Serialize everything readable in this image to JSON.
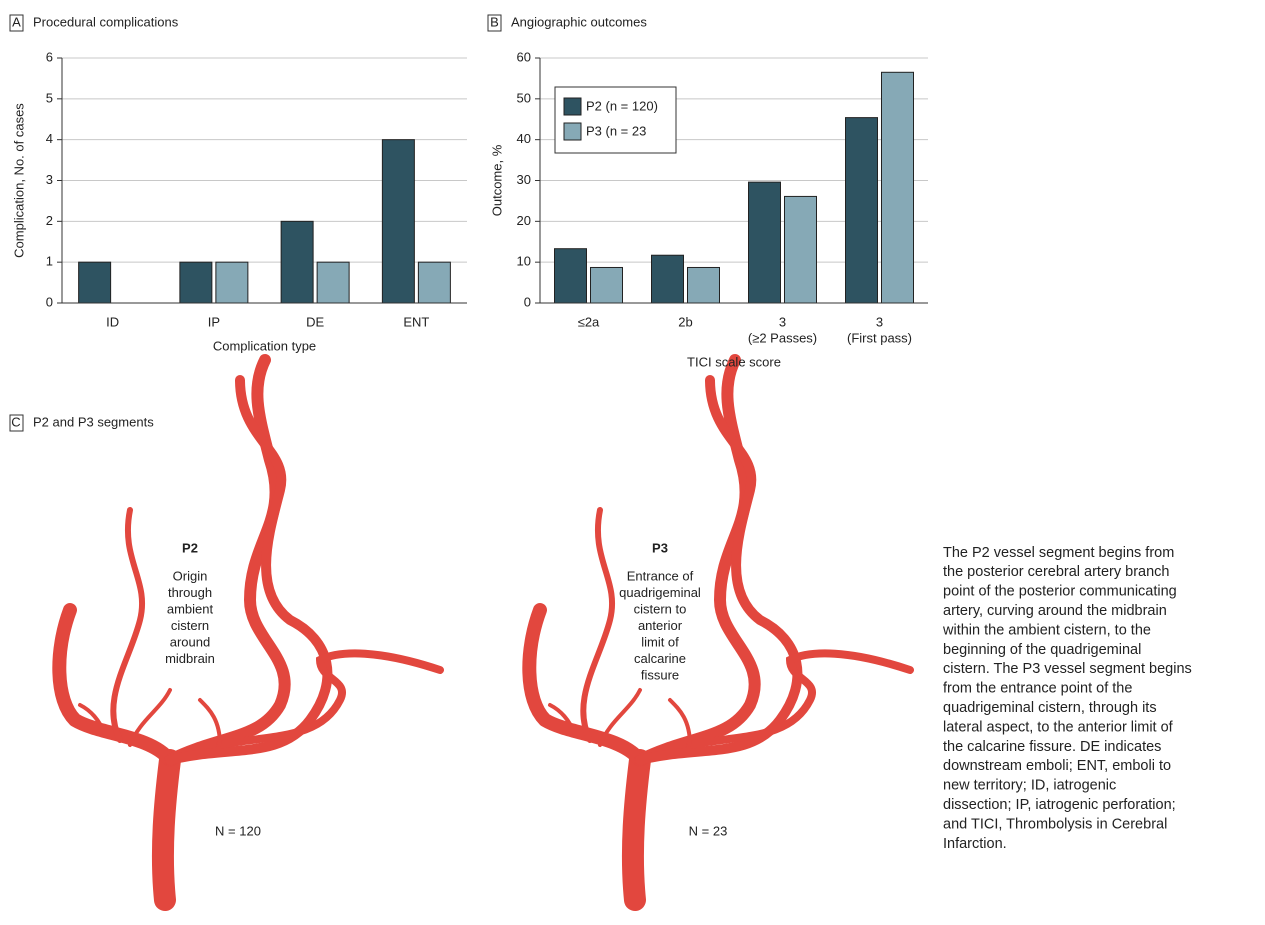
{
  "chart_data": [
    {
      "type": "bar",
      "panel": "A",
      "title": "Procedural complications",
      "categories": [
        [
          "ID"
        ],
        [
          "IP"
        ],
        [
          "DE"
        ],
        [
          "ENT"
        ]
      ],
      "series": [
        {
          "name": "P2 (n = 120)",
          "color": "#2e5361",
          "values": [
            1,
            1,
            2,
            4
          ]
        },
        {
          "name": "P3 (n = 23",
          "color": "#86a9b6",
          "values": [
            0,
            1,
            1,
            1
          ]
        }
      ],
      "xlabel": "Complication type",
      "ylabel": "Complication, No. of cases",
      "ylim": [
        0,
        6
      ],
      "yticks": [
        0,
        1,
        2,
        3,
        4,
        5,
        6
      ],
      "grid": true,
      "legend": false
    },
    {
      "type": "bar",
      "panel": "B",
      "title": "Angiographic outcomes",
      "categories": [
        [
          "≤2a"
        ],
        [
          "2b"
        ],
        [
          "3",
          "(≥2 Passes)"
        ],
        [
          "3",
          "(First pass)"
        ]
      ],
      "series": [
        {
          "name": "P2 (n = 120)",
          "color": "#2e5361",
          "values": [
            13.3,
            11.7,
            29.6,
            45.4
          ]
        },
        {
          "name": "P3 (n = 23",
          "color": "#86a9b6",
          "values": [
            8.7,
            8.7,
            26.1,
            56.5
          ]
        }
      ],
      "xlabel": "TICI scale score",
      "ylabel": "Outcome, %",
      "ylim": [
        0,
        60
      ],
      "yticks": [
        0,
        10,
        20,
        30,
        40,
        50,
        60
      ],
      "grid": true,
      "legend": "upper left"
    }
  ],
  "panel_c": {
    "panel": "C",
    "title": "P2 and P3 segments",
    "illustrations": [
      {
        "segment": "P2",
        "description": [
          "Origin",
          "through",
          "ambient",
          "cistern",
          "around",
          "midbrain"
        ],
        "n": "N = 120"
      },
      {
        "segment": "P3",
        "description": [
          "Entrance of",
          "quadrigeminal",
          "cistern to",
          "anterior",
          "limit of",
          "calcarine",
          "fissure"
        ],
        "n": "N = 23"
      }
    ]
  },
  "caption": [
    "The P2 vessel segment begins from",
    "the posterior cerebral artery branch",
    "point of the posterior communicating",
    "artery, curving around the midbrain",
    "within the ambient cistern, to the",
    "beginning of the quadrigeminal",
    "cistern. The P3 vessel segment begins",
    "from the entrance point of the",
    "quadrigeminal cistern, through its",
    "lateral aspect, to the anterior limit of",
    "the calcarine fissure. DE indicates",
    "downstream emboli; ENT, emboli to",
    "new territory; ID, iatrogenic",
    "dissection; IP, iatrogenic perforation;",
    "and TICI, Thrombolysis in Cerebral",
    "Infarction."
  ]
}
